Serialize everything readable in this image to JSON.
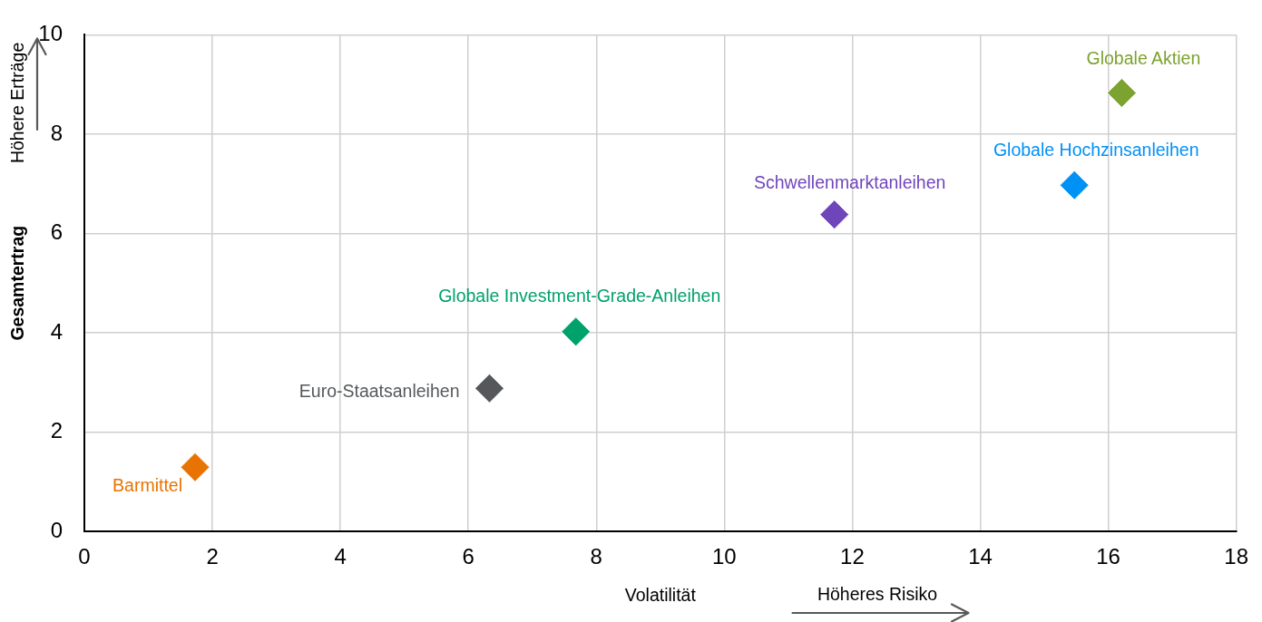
{
  "chart_data": {
    "type": "scatter",
    "xlabel": "Volatilität",
    "ylabel": "Gesamtertrag",
    "annotations": [
      "Höhere Erträge",
      "Höheres Risiko"
    ],
    "xlim": [
      0,
      18
    ],
    "xticks": [
      0,
      2,
      4,
      6,
      8,
      10,
      12,
      14,
      16,
      18
    ],
    "ylim": [
      0,
      10
    ],
    "yticks": [
      0,
      2,
      4,
      6,
      8,
      10
    ],
    "grid": true,
    "marker": "diamond",
    "series": [
      {
        "name": "Barmittel",
        "color": "#e97300",
        "x": [
          1.73
        ],
        "values": [
          1.29
        ]
      },
      {
        "name": "Euro-Staatsanleihen",
        "color": "#55585b",
        "x": [
          6.33
        ],
        "values": [
          2.88
        ]
      },
      {
        "name": "Globale Investment-Grade-Anleihen",
        "color": "#00a26b",
        "x": [
          7.68
        ],
        "values": [
          4.02
        ]
      },
      {
        "name": "Schwellenmarktanleihen",
        "color": "#6f45bb",
        "x": [
          11.72
        ],
        "values": [
          6.38
        ]
      },
      {
        "name": "Globale Hochzinsanleihen",
        "color": "#0091f7",
        "x": [
          15.47
        ],
        "values": [
          6.97
        ]
      },
      {
        "name": "Globale Aktien",
        "color": "#7ca22f",
        "x": [
          16.21
        ],
        "values": [
          8.83
        ]
      }
    ]
  }
}
